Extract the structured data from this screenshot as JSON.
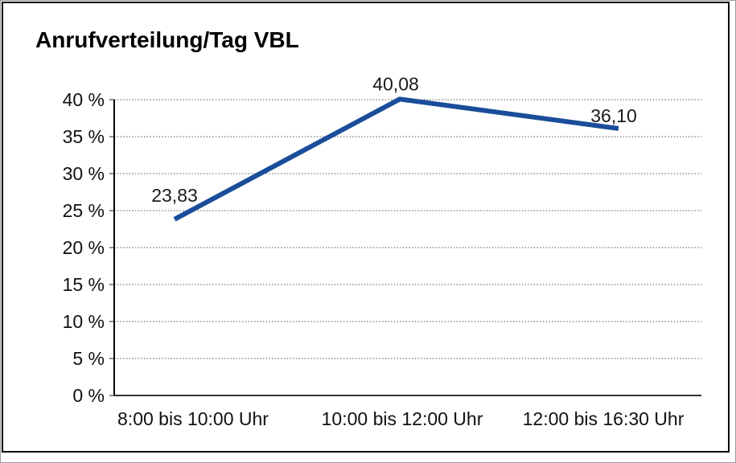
{
  "chart_data": {
    "type": "line",
    "title": "Anrufverteilung/Tag VBL",
    "categories": [
      "8:00 bis 10:00 Uhr",
      "10:00 bis 12:00 Uhr",
      "12:00 bis 16:30 Uhr"
    ],
    "series": [
      {
        "values": [
          23.83,
          40.08,
          36.1
        ],
        "point_labels": [
          "23,83",
          "40,08",
          "36,10"
        ],
        "color": "#1a4d9a"
      }
    ],
    "xlabel": "",
    "ylabel": "",
    "ylim": [
      0,
      40
    ],
    "ytick_step": 5,
    "ytick_labels": [
      "0 %",
      "5 %",
      "10 %",
      "15 %",
      "20 %",
      "25 %",
      "30 %",
      "35 %",
      "40 %"
    ],
    "grid": "horizontal-dotted",
    "legend_position": "none",
    "text_color": "#111111",
    "axis_color": "#222222",
    "gridline_color": "#555555"
  }
}
